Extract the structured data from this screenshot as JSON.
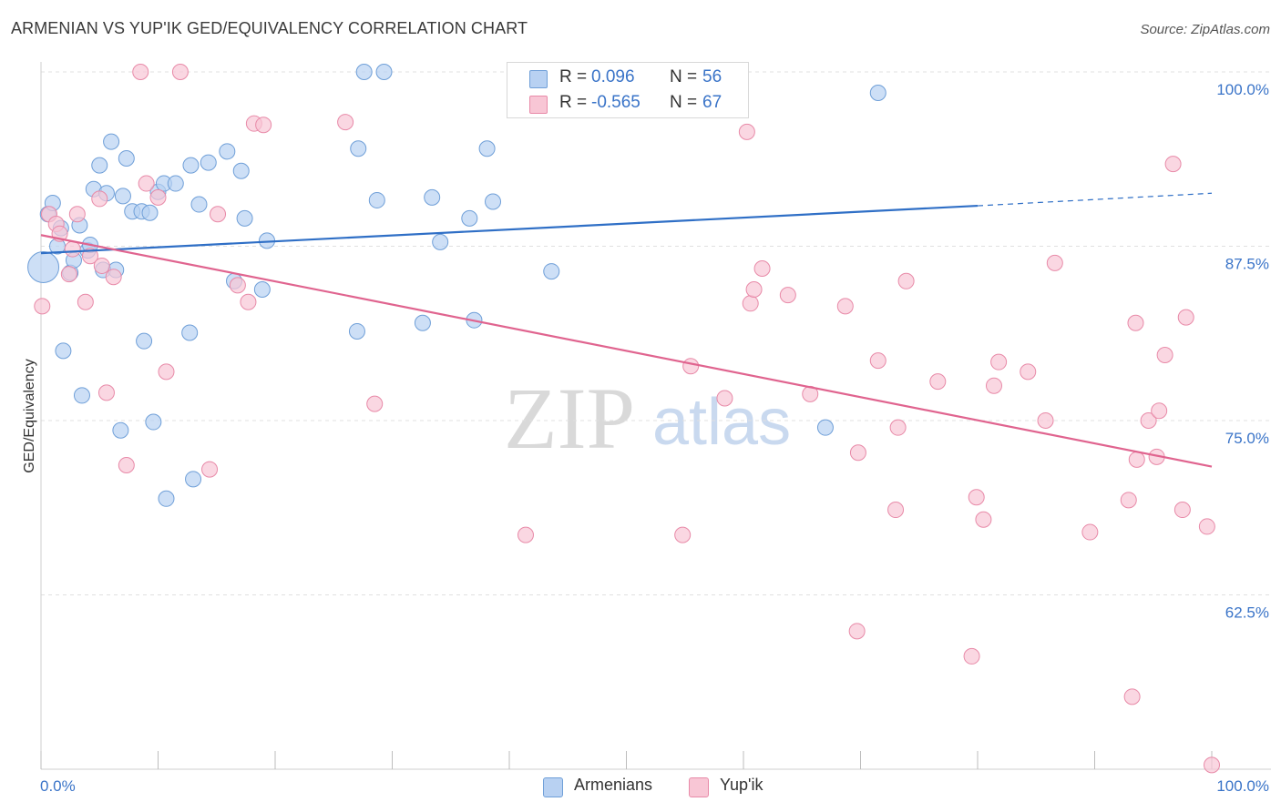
{
  "title": "ARMENIAN VS YUP'IK GED/EQUIVALENCY CORRELATION CHART",
  "source": "Source: ZipAtlas.com",
  "watermark": {
    "zip": "ZIP",
    "atlas": "atlas"
  },
  "colors": {
    "blue_fill": "#b8d1f2",
    "blue_stroke": "#6f9fd8",
    "blue_line": "#2f6fc6",
    "pink_fill": "#f8c6d5",
    "pink_stroke": "#e88aa8",
    "pink_line": "#e0648f",
    "tick_label": "#3a74c8",
    "grid": "#e0e0e0"
  },
  "legend_top": [
    {
      "r_label": "R =",
      "r_value": "0.096",
      "n_label": "N =",
      "n_value": "56",
      "color": "#b8d1f2",
      "border": "#6f9fd8"
    },
    {
      "r_label": "R =",
      "r_value": "-0.565",
      "n_label": "N =",
      "n_value": "67",
      "color": "#f8c6d5",
      "border": "#e88aa8"
    }
  ],
  "legend_bottom": [
    {
      "label": "Armenians",
      "color": "#b8d1f2",
      "border": "#6f9fd8"
    },
    {
      "label": "Yup'ik",
      "color": "#f8c6d5",
      "border": "#e88aa8"
    }
  ],
  "chart_data": {
    "type": "scatter",
    "title": "ARMENIAN VS YUP'IK GED/EQUIVALENCY CORRELATION CHART",
    "xlabel": "",
    "ylabel": "GED/Equivalency",
    "xlim": [
      0,
      100
    ],
    "ylim": [
      50,
      100
    ],
    "x_tick_labels": [
      "0.0%",
      "100.0%"
    ],
    "y_ticks": [
      62.5,
      75.0,
      87.5,
      100.0
    ],
    "y_tick_labels": [
      "62.5%",
      "75.0%",
      "87.5%",
      "100.0%"
    ],
    "grid": true,
    "legend_position": "top-center",
    "series": [
      {
        "name": "Armenians",
        "r": 0.096,
        "n": 56,
        "trend": {
          "x": [
            0,
            80,
            100
          ],
          "y": [
            87.0,
            90.4,
            91.3
          ],
          "dashed_from": 80
        },
        "points": [
          [
            0.2,
            86.0
          ],
          [
            0.6,
            89.8
          ],
          [
            1.0,
            90.6
          ],
          [
            1.4,
            87.5
          ],
          [
            1.7,
            88.8
          ],
          [
            1.9,
            80.0
          ],
          [
            2.5,
            85.6
          ],
          [
            2.8,
            86.5
          ],
          [
            3.3,
            89.0
          ],
          [
            3.5,
            76.8
          ],
          [
            4.0,
            87.2
          ],
          [
            4.2,
            87.6
          ],
          [
            4.5,
            91.6
          ],
          [
            5.0,
            93.3
          ],
          [
            5.3,
            85.8
          ],
          [
            5.6,
            91.3
          ],
          [
            6.0,
            95.0
          ],
          [
            6.4,
            85.8
          ],
          [
            6.8,
            74.3
          ],
          [
            7.0,
            91.1
          ],
          [
            7.3,
            93.8
          ],
          [
            7.8,
            90.0
          ],
          [
            8.6,
            90.0
          ],
          [
            8.8,
            80.7
          ],
          [
            9.3,
            89.9
          ],
          [
            9.6,
            74.9
          ],
          [
            10.0,
            91.4
          ],
          [
            10.5,
            92.0
          ],
          [
            10.7,
            69.4
          ],
          [
            11.5,
            92.0
          ],
          [
            12.7,
            81.3
          ],
          [
            12.8,
            93.3
          ],
          [
            13.0,
            70.8
          ],
          [
            13.5,
            90.5
          ],
          [
            14.3,
            93.5
          ],
          [
            15.9,
            94.3
          ],
          [
            16.5,
            85.0
          ],
          [
            17.1,
            92.9
          ],
          [
            17.4,
            89.5
          ],
          [
            18.9,
            84.4
          ],
          [
            19.3,
            87.9
          ],
          [
            27.0,
            81.4
          ],
          [
            27.1,
            94.5
          ],
          [
            27.6,
            100.0
          ],
          [
            28.7,
            90.8
          ],
          [
            29.3,
            100.0
          ],
          [
            32.6,
            82.0
          ],
          [
            33.4,
            91.0
          ],
          [
            34.1,
            87.8
          ],
          [
            36.6,
            89.5
          ],
          [
            37.0,
            82.2
          ],
          [
            38.1,
            94.5
          ],
          [
            38.6,
            90.7
          ],
          [
            43.6,
            85.7
          ],
          [
            67.0,
            74.5
          ],
          [
            71.5,
            98.5
          ]
        ]
      },
      {
        "name": "Yup'ik",
        "r": -0.565,
        "n": 67,
        "trend": {
          "x": [
            0,
            100
          ],
          "y": [
            88.3,
            71.7
          ]
        },
        "points": [
          [
            0.1,
            83.2
          ],
          [
            0.7,
            89.8
          ],
          [
            1.3,
            89.1
          ],
          [
            1.6,
            88.4
          ],
          [
            2.4,
            85.5
          ],
          [
            2.7,
            87.3
          ],
          [
            3.1,
            89.8
          ],
          [
            3.8,
            83.5
          ],
          [
            4.2,
            86.8
          ],
          [
            5.0,
            90.9
          ],
          [
            5.2,
            86.1
          ],
          [
            5.6,
            77.0
          ],
          [
            6.2,
            85.3
          ],
          [
            7.3,
            71.8
          ],
          [
            8.5,
            100.0
          ],
          [
            9.0,
            92.0
          ],
          [
            10.0,
            91.0
          ],
          [
            10.7,
            78.5
          ],
          [
            11.9,
            100.0
          ],
          [
            14.4,
            71.5
          ],
          [
            15.1,
            89.8
          ],
          [
            16.8,
            84.7
          ],
          [
            17.7,
            83.5
          ],
          [
            18.2,
            96.3
          ],
          [
            19.0,
            96.2
          ],
          [
            26.0,
            96.4
          ],
          [
            28.5,
            76.2
          ],
          [
            41.4,
            66.8
          ],
          [
            55.5,
            78.9
          ],
          [
            54.8,
            66.8
          ],
          [
            58.4,
            76.6
          ],
          [
            60.3,
            95.7
          ],
          [
            60.6,
            83.4
          ],
          [
            60.9,
            84.4
          ],
          [
            61.6,
            85.9
          ],
          [
            63.8,
            84.0
          ],
          [
            65.7,
            76.9
          ],
          [
            68.7,
            83.2
          ],
          [
            69.7,
            59.9
          ],
          [
            69.8,
            72.7
          ],
          [
            71.5,
            79.3
          ],
          [
            73.0,
            68.6
          ],
          [
            73.2,
            74.5
          ],
          [
            73.9,
            85.0
          ],
          [
            76.6,
            77.8
          ],
          [
            79.5,
            58.1
          ],
          [
            79.9,
            69.5
          ],
          [
            80.5,
            67.9
          ],
          [
            81.4,
            77.5
          ],
          [
            81.8,
            79.2
          ],
          [
            84.3,
            78.5
          ],
          [
            85.8,
            75.0
          ],
          [
            86.6,
            86.3
          ],
          [
            89.6,
            67.0
          ],
          [
            92.9,
            69.3
          ],
          [
            93.2,
            55.2
          ],
          [
            93.5,
            82.0
          ],
          [
            93.6,
            72.2
          ],
          [
            94.6,
            75.0
          ],
          [
            95.3,
            72.4
          ],
          [
            95.5,
            75.7
          ],
          [
            96.0,
            79.7
          ],
          [
            96.7,
            93.4
          ],
          [
            97.5,
            68.6
          ],
          [
            97.8,
            82.4
          ],
          [
            99.6,
            67.4
          ],
          [
            100.0,
            50.3
          ]
        ]
      }
    ]
  }
}
